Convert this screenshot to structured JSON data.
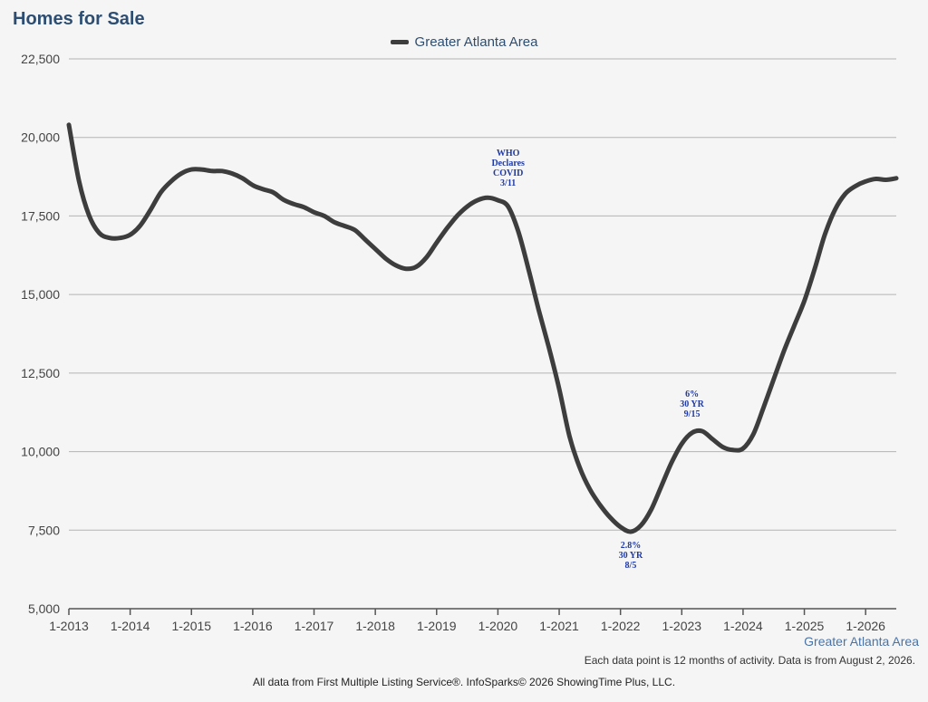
{
  "page": {
    "title": "Homes for Sale",
    "footnote": "Each data point is 12 months of activity. Data is from August 2, 2026.",
    "credit": "All data from First Multiple Listing Service®. InfoSparks© 2026 ShowingTime Plus, LLC.",
    "series_end_label": "Greater Atlanta Area"
  },
  "colors": {
    "line": "#3d3d3d",
    "title": "#2d4e72",
    "annotation": "#1f3aa6",
    "grid": "#b4b4b4"
  },
  "chart_data": {
    "type": "line",
    "title": "Homes for Sale",
    "legend": [
      "Greater Atlanta Area"
    ],
    "legend_position": "top-center",
    "grid": true,
    "x_axis": {
      "type": "date",
      "range": [
        "2013-01",
        "2026-07"
      ],
      "tick_labels": [
        "1-2013",
        "1-2014",
        "1-2015",
        "1-2016",
        "1-2017",
        "1-2018",
        "1-2019",
        "1-2020",
        "1-2021",
        "1-2022",
        "1-2023",
        "1-2024",
        "1-2025",
        "1-2026"
      ]
    },
    "y_axis": {
      "range": [
        5000,
        22500
      ],
      "tick_values": [
        5000,
        7500,
        10000,
        12500,
        15000,
        17500,
        20000,
        22500
      ],
      "tick_labels": [
        "5,000",
        "7,500",
        "10,000",
        "12,500",
        "15,000",
        "17,500",
        "20,000",
        "22,500"
      ]
    },
    "series": [
      {
        "name": "Greater Atlanta Area",
        "points": [
          [
            "2013-01",
            20400
          ],
          [
            "2013-03",
            18600
          ],
          [
            "2013-05",
            17500
          ],
          [
            "2013-07",
            16950
          ],
          [
            "2013-09",
            16800
          ],
          [
            "2013-11",
            16800
          ],
          [
            "2014-01",
            16900
          ],
          [
            "2014-03",
            17200
          ],
          [
            "2014-05",
            17700
          ],
          [
            "2014-07",
            18250
          ],
          [
            "2014-09",
            18600
          ],
          [
            "2014-11",
            18850
          ],
          [
            "2015-01",
            18980
          ],
          [
            "2015-03",
            18980
          ],
          [
            "2015-05",
            18930
          ],
          [
            "2015-07",
            18930
          ],
          [
            "2015-09",
            18850
          ],
          [
            "2015-11",
            18700
          ],
          [
            "2016-01",
            18480
          ],
          [
            "2016-03",
            18350
          ],
          [
            "2016-05",
            18250
          ],
          [
            "2016-07",
            18020
          ],
          [
            "2016-09",
            17880
          ],
          [
            "2016-11",
            17780
          ],
          [
            "2017-01",
            17620
          ],
          [
            "2017-03",
            17500
          ],
          [
            "2017-05",
            17300
          ],
          [
            "2017-07",
            17180
          ],
          [
            "2017-09",
            17050
          ],
          [
            "2017-11",
            16750
          ],
          [
            "2018-01",
            16450
          ],
          [
            "2018-03",
            16150
          ],
          [
            "2018-05",
            15930
          ],
          [
            "2018-07",
            15820
          ],
          [
            "2018-09",
            15880
          ],
          [
            "2018-11",
            16180
          ],
          [
            "2019-01",
            16650
          ],
          [
            "2019-03",
            17100
          ],
          [
            "2019-05",
            17500
          ],
          [
            "2019-07",
            17800
          ],
          [
            "2019-09",
            18000
          ],
          [
            "2019-11",
            18080
          ],
          [
            "2020-01",
            18000
          ],
          [
            "2020-03",
            17800
          ],
          [
            "2020-05",
            17000
          ],
          [
            "2020-07",
            15800
          ],
          [
            "2020-09",
            14500
          ],
          [
            "2020-11",
            13300
          ],
          [
            "2021-01",
            12000
          ],
          [
            "2021-03",
            10500
          ],
          [
            "2021-05",
            9500
          ],
          [
            "2021-07",
            8800
          ],
          [
            "2021-09",
            8300
          ],
          [
            "2021-11",
            7900
          ],
          [
            "2022-01",
            7600
          ],
          [
            "2022-03",
            7450
          ],
          [
            "2022-05",
            7650
          ],
          [
            "2022-07",
            8150
          ],
          [
            "2022-09",
            8900
          ],
          [
            "2022-11",
            9650
          ],
          [
            "2023-01",
            10250
          ],
          [
            "2023-03",
            10600
          ],
          [
            "2023-05",
            10650
          ],
          [
            "2023-07",
            10400
          ],
          [
            "2023-09",
            10150
          ],
          [
            "2023-11",
            10050
          ],
          [
            "2024-01",
            10100
          ],
          [
            "2024-03",
            10550
          ],
          [
            "2024-05",
            11400
          ],
          [
            "2024-07",
            12300
          ],
          [
            "2024-09",
            13200
          ],
          [
            "2024-11",
            14000
          ],
          [
            "2025-01",
            14800
          ],
          [
            "2025-03",
            15800
          ],
          [
            "2025-05",
            16900
          ],
          [
            "2025-07",
            17700
          ],
          [
            "2025-09",
            18200
          ],
          [
            "2025-11",
            18450
          ],
          [
            "2026-01",
            18600
          ],
          [
            "2026-03",
            18680
          ],
          [
            "2026-05",
            18650
          ],
          [
            "2026-07",
            18700
          ]
        ]
      }
    ],
    "annotations": [
      {
        "lines": [
          "WHO",
          "Declares",
          "COVID",
          "3/11"
        ],
        "x": "2020-03",
        "y": 18000,
        "placement": "above"
      },
      {
        "lines": [
          "2.8%",
          "30 YR",
          "8/5"
        ],
        "x": "2022-03",
        "y": 7450,
        "placement": "below"
      },
      {
        "lines": [
          "6%",
          "30 YR",
          "9/15"
        ],
        "x": "2023-03",
        "y": 10650,
        "placement": "above"
      }
    ]
  }
}
